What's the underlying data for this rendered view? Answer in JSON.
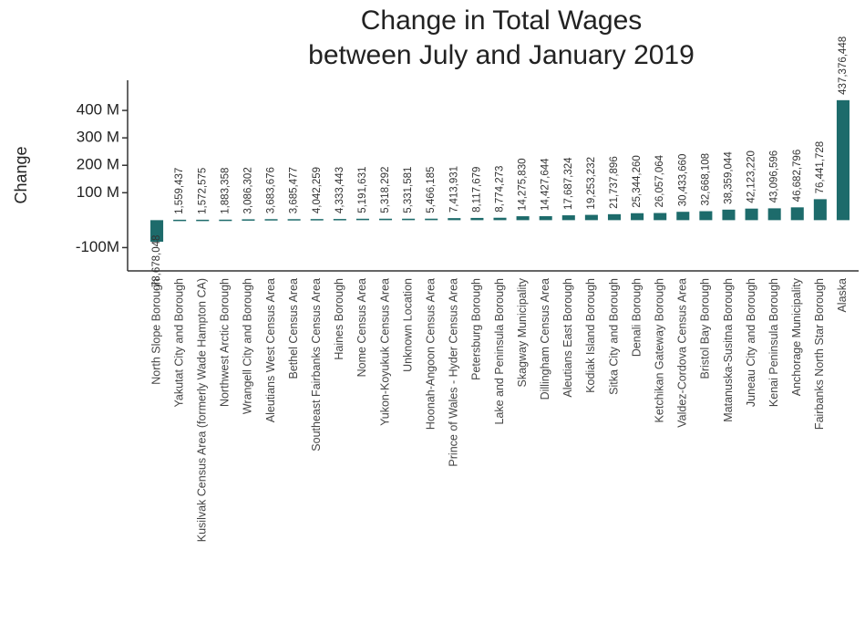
{
  "chart_data": {
    "type": "bar",
    "title": [
      "Change in Total Wages",
      "between July and January 2019"
    ],
    "y_label": "Change",
    "categories": [
      "North Slope Borough",
      "Yakutat City and Borough",
      "Kusilvak Census Area (formerly Wade Hampton CA)",
      "Northwest Arctic Borough",
      "Wrangell City and Borough",
      "Aleutians West Census Area",
      "Bethel Census Area",
      "Southeast Fairbanks Census Area",
      "Haines Borough",
      "Nome Census Area",
      "Yukon-Koyukuk Census Area",
      "Unknown Location",
      "Hoonah-Angoon Census Area",
      "Prince of Wales - Hyder Census Area",
      "Petersburg Borough",
      "Lake and Peninsula Borough",
      "Skagway Municipality",
      "Dillingham Census Area",
      "Aleutians East Borough",
      "Kodiak Island Borough",
      "Sitka City and Borough",
      "Denali Borough",
      "Ketchikan Gateway Borough",
      "Valdez-Cordova Census Area",
      "Bristol Bay Borough",
      "Matanuska-Susitna Borough",
      "Juneau City and Borough",
      "Kenai Peninsula Borough",
      "Anchorage Municipality",
      "Fairbanks North Star Borough",
      "Alaska"
    ],
    "values": [
      -78678048,
      1559437,
      1572575,
      1883358,
      3086302,
      3683676,
      3685477,
      4042259,
      4333443,
      5191631,
      5318292,
      5331581,
      5466185,
      7413931,
      8117679,
      8774273,
      14275830,
      14427644,
      17687324,
      19253232,
      21737896,
      25344260,
      26057064,
      30433660,
      32668108,
      38359044,
      42123220,
      43096596,
      46682796,
      76441728,
      437376448
    ],
    "value_labels": [
      "-78,678,048",
      "1,559,437",
      "1,572,575",
      "1,883,358",
      "3,086,302",
      "3,683,676",
      "3,685,477",
      "4,042,259",
      "4,333,443",
      "5,191,631",
      "5,318,292",
      "5,331,581",
      "5,466,185",
      "7,413,931",
      "8,117,679",
      "8,774,273",
      "14,275,830",
      "14,427,644",
      "17,687,324",
      "19,253,232",
      "21,737,896",
      "25,344,260",
      "26,057,064",
      "30,433,660",
      "32,668,108",
      "38,359,044",
      "42,123,220",
      "43,096,596",
      "46,682,796",
      "76,441,728",
      "437,376,448"
    ],
    "color": "#1d6b6b",
    "ylim": [
      -185000000,
      510000000
    ],
    "yticks": [
      {
        "value": -100000000,
        "label": "-100M"
      },
      {
        "value": 100000000,
        "label": "100 M"
      },
      {
        "value": 200000000,
        "label": "200 M"
      },
      {
        "value": 300000000,
        "label": "300 M"
      },
      {
        "value": 400000000,
        "label": "400 M"
      }
    ]
  }
}
